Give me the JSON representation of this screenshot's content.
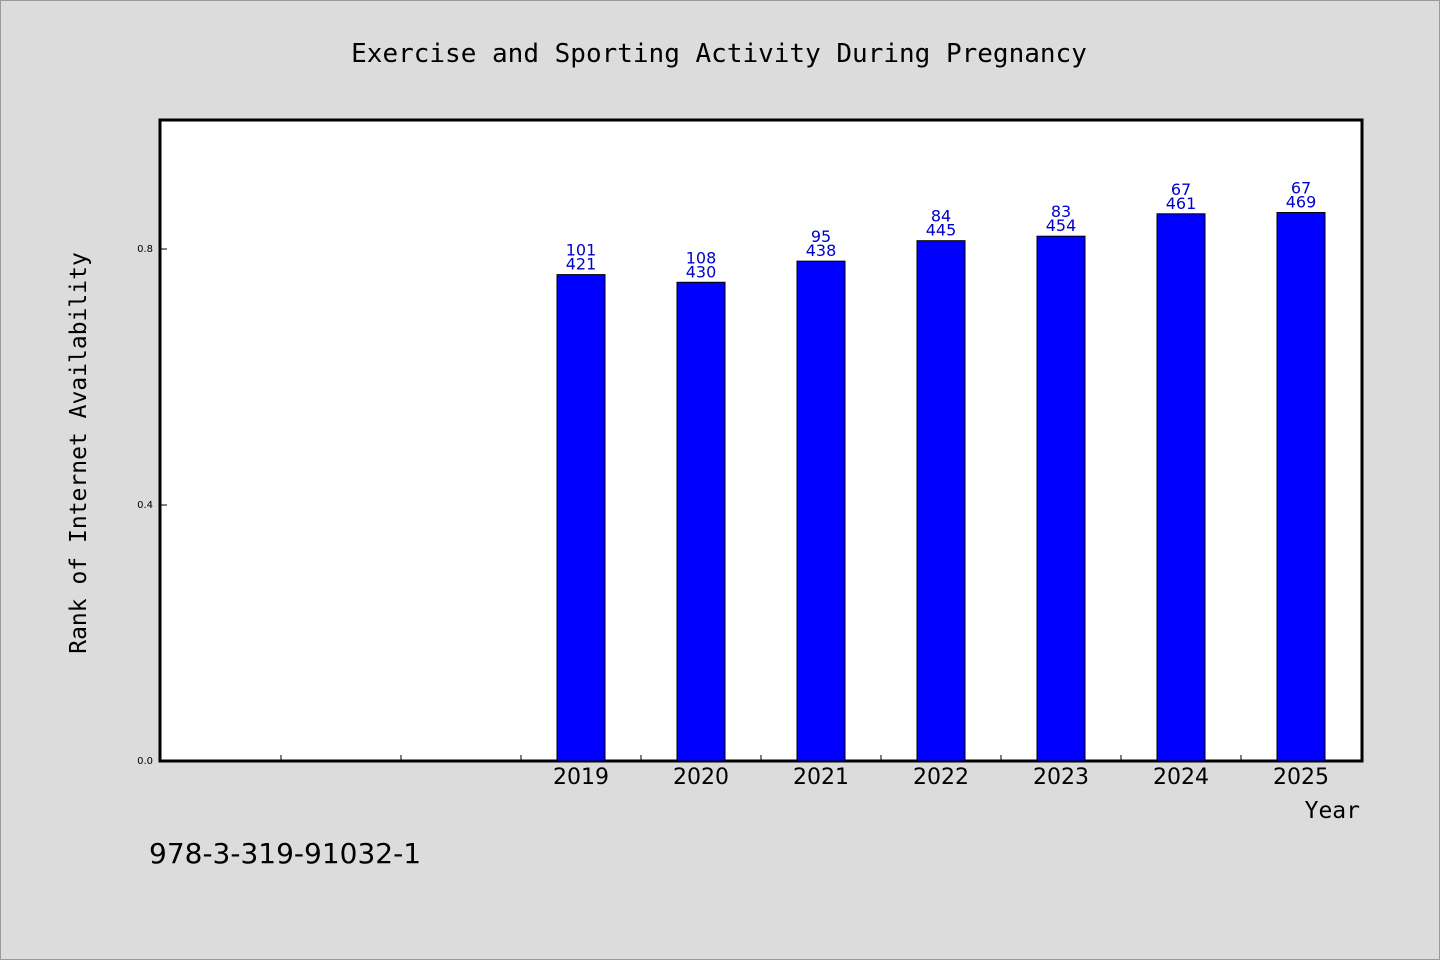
{
  "chart_data": {
    "type": "bar",
    "title": "Exercise and Sporting Activity During Pregnancy",
    "xlabel": "Year",
    "ylabel": "Rank of Internet Availability",
    "categories": [
      "2019",
      "2020",
      "2021",
      "2022",
      "2023",
      "2024",
      "2025"
    ],
    "values": [
      0.76,
      0.748,
      0.781,
      0.813,
      0.82,
      0.855,
      0.857
    ],
    "label_top": [
      "101",
      "108",
      "95",
      "84",
      "83",
      "67",
      "67"
    ],
    "label_bottom": [
      "421",
      "430",
      "438",
      "445",
      "454",
      "461",
      "469"
    ],
    "ylim": [
      0,
      1.0
    ],
    "yticks": [
      0.0,
      0.4,
      0.8
    ],
    "ytick_labels": [
      "0.0",
      "0.4",
      "0.8"
    ],
    "empty_leading_slots": 3,
    "grid": false,
    "legend": "none",
    "bar_color": "#0000ff",
    "label_color": "#0000cc"
  },
  "footer_code": "978-3-319-91032-1"
}
